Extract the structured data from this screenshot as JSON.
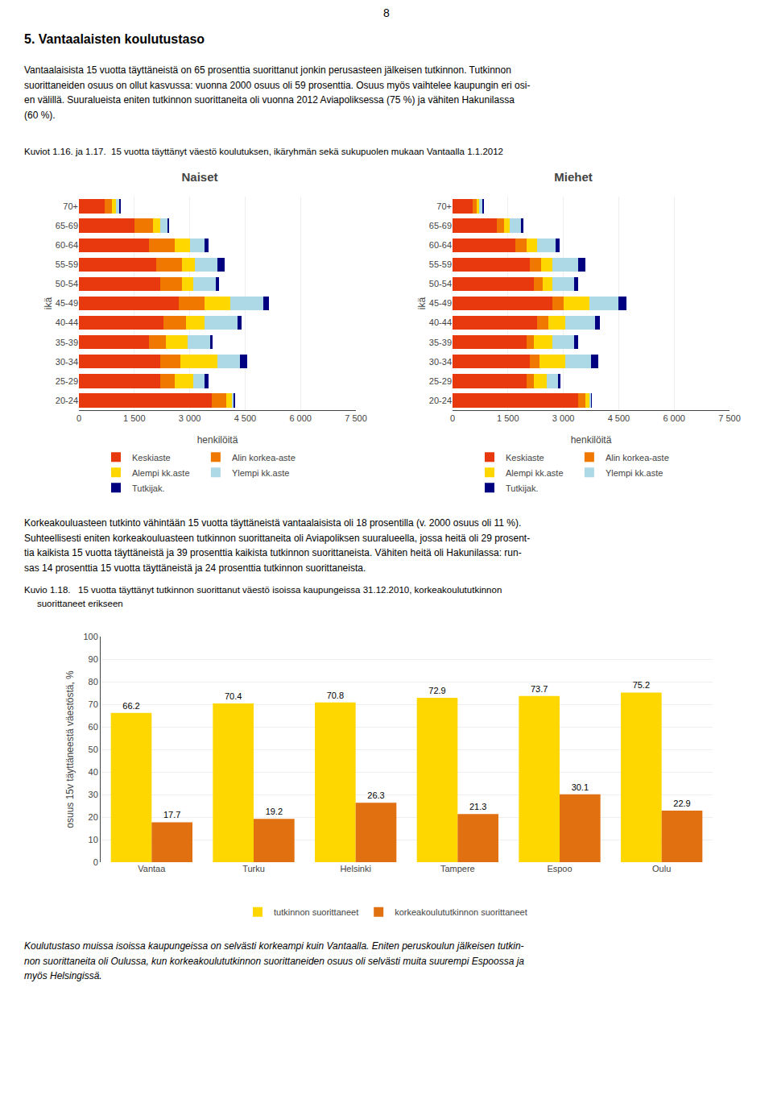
{
  "page_number": "8",
  "title": "5. Vantaalaisten koulutustaso",
  "text1": "Vantaalaisista 15 vuotta täyttäneistä on 65 prosenttia suorittanut jonkin perusasteen jälkeisen tutkinnon. Tutkinnon\nsuorittaneiden osuus on ollut kasvussa: vuonna 2000 osuus oli 59 prosenttia. Osuus myös vaihtelee kaupungin eri osi-\nen välillä. Suuralueista eniten tutkinnon suorittaneita oli vuonna 2012 Aviapoliksessa (75 %) ja vähiten Hakunilassa\n(60 %).",
  "caption1": "Kuviot 1.16. ja 1.17.  15 vuotta täyttänyt väestö koulutuksen, ikäryhmän sekä sukupuolen mukaan Vantaalla 1.1.2012",
  "text2": "Korkeakouluasteen tutkinto vähintään 15 vuotta täyttäneistä vantaalaisista oli 18 prosentilla (v. 2000 osuus oli 11 %).\nSuhteellisesti eniten korkeakouluasteen tutkinnon suorittaneita oli Aviapoliksen suuralueella, jossa heitä oli 29 prosent-\ntia kaikista 15 vuotta täyttäneistä ja 39 prosenttia kaikista tutkinnon suorittaneista. Vähiten heitä oli Hakunilassa: run-\nsas 14 prosenttia 15 vuotta täyttäneistä ja 24 prosenttia tutkinnon suorittaneista.",
  "caption2": [
    "Kuvio 1.18.   15 vuotta täyttänyt tutkinnon suorittanut väestö isoissa kaupungeissa 31.12.2010, korkeakoulututkinnon",
    "     suorittaneet erikseen"
  ],
  "text3": "Koulutustaso muissa isoissa kaupungeissa on selvästi korkeampi kuin Vantaalla. Eniten peruskoulun jälkeisen tutkin-\nnon suorittaneita oli Oulussa, kun korkeakoulututkinnon suorittaneiden osuus oli selvästi muita suurempi Espoossa ja\nmyös Helsingissä.",
  "chart_data": [
    {
      "type": "bar",
      "orientation": "horizontal",
      "stacked": true,
      "title": "Naiset",
      "xlabel": "henkilöitä",
      "ylabel": "ikä",
      "categories": [
        "20-24",
        "25-29",
        "30-34",
        "35-39",
        "40-44",
        "45-49",
        "50-54",
        "55-59",
        "60-64",
        "65-69",
        "70+"
      ],
      "series": [
        {
          "name": "Keskiaste",
          "color": "#E8380D",
          "values": [
            3600,
            2200,
            2200,
            1900,
            2300,
            2700,
            2200,
            2100,
            1900,
            1500,
            700
          ]
        },
        {
          "name": "Alin korkea-aste",
          "color": "#F07800",
          "values": [
            400,
            400,
            550,
            450,
            600,
            700,
            600,
            700,
            700,
            500,
            200
          ]
        },
        {
          "name": "Alempi kk.aste",
          "color": "#FFD700",
          "values": [
            150,
            500,
            1000,
            600,
            500,
            700,
            300,
            350,
            400,
            200,
            100
          ]
        },
        {
          "name": "Ylempi kk.aste",
          "color": "#ADD8E6",
          "values": [
            50,
            300,
            600,
            600,
            900,
            900,
            600,
            600,
            400,
            200,
            100
          ]
        },
        {
          "name": "Tutkijak.",
          "color": "#000080",
          "values": [
            20,
            100,
            200,
            60,
            100,
            150,
            100,
            200,
            100,
            50,
            20
          ]
        }
      ],
      "xlim": [
        0,
        7500
      ],
      "xticks": [
        0,
        {
          "value": 1500,
          "label": "1 500"
        },
        {
          "value": 3000,
          "label": "3 000"
        },
        {
          "value": 4500,
          "label": "4 500"
        },
        {
          "value": 6000,
          "label": "6 000"
        },
        {
          "value": 7500,
          "label": "7 500"
        }
      ],
      "grid": true,
      "legend": "bottom"
    },
    {
      "type": "bar",
      "orientation": "horizontal",
      "stacked": true,
      "title": "Miehet",
      "xlabel": "henkilöitä",
      "ylabel": "ikä",
      "categories": [
        "20-24",
        "25-29",
        "30-34",
        "35-39",
        "40-44",
        "45-49",
        "50-54",
        "55-59",
        "60-64",
        "65-69",
        "70+"
      ],
      "series": [
        {
          "name": "Keskiaste",
          "color": "#E8380D",
          "values": [
            3400,
            2000,
            2100,
            2000,
            2300,
            2700,
            2200,
            2100,
            1700,
            1200,
            550
          ]
        },
        {
          "name": "Alin korkea-aste",
          "color": "#F07800",
          "values": [
            200,
            200,
            250,
            200,
            300,
            300,
            250,
            300,
            300,
            200,
            100
          ]
        },
        {
          "name": "Alempi kk.aste",
          "color": "#FFD700",
          "values": [
            100,
            350,
            700,
            500,
            450,
            700,
            250,
            300,
            300,
            150,
            80
          ]
        },
        {
          "name": "Ylempi kk.aste",
          "color": "#ADD8E6",
          "values": [
            50,
            300,
            700,
            600,
            800,
            800,
            600,
            700,
            500,
            300,
            80
          ]
        },
        {
          "name": "Tutkijak.",
          "color": "#000080",
          "values": [
            20,
            80,
            200,
            100,
            150,
            200,
            100,
            200,
            100,
            60,
            20
          ]
        }
      ],
      "xlim": [
        0,
        7500
      ],
      "xticks": [
        0,
        {
          "value": 1500,
          "label": "1 500"
        },
        {
          "value": 3000,
          "label": "3 000"
        },
        {
          "value": 4500,
          "label": "4 500"
        },
        {
          "value": 6000,
          "label": "6 000"
        },
        {
          "value": 7500,
          "label": "7 500"
        }
      ],
      "grid": true,
      "legend": "bottom"
    },
    {
      "type": "bar",
      "categories": [
        "Vantaa",
        "Turku",
        "Helsinki",
        "Tampere",
        "Espoo",
        "Oulu"
      ],
      "series": [
        {
          "name": "tutkinnon suorittaneet",
          "color": "#FFD700",
          "values": [
            66.2,
            70.4,
            70.8,
            72.9,
            73.7,
            75.2
          ]
        },
        {
          "name": "korkeakoulututkinnon suorittaneet",
          "color": "#E07010",
          "values": [
            17.7,
            19.2,
            26.3,
            21.3,
            30.1,
            22.9
          ]
        }
      ],
      "ylabel": "osuus 15v täyttäneestä väestöstä, %",
      "ylim": [
        0,
        100
      ],
      "yticks": [
        0,
        10,
        20,
        30,
        40,
        50,
        60,
        70,
        80,
        90,
        100
      ],
      "grid": true,
      "data_labels": true,
      "legend": "bottom"
    }
  ]
}
